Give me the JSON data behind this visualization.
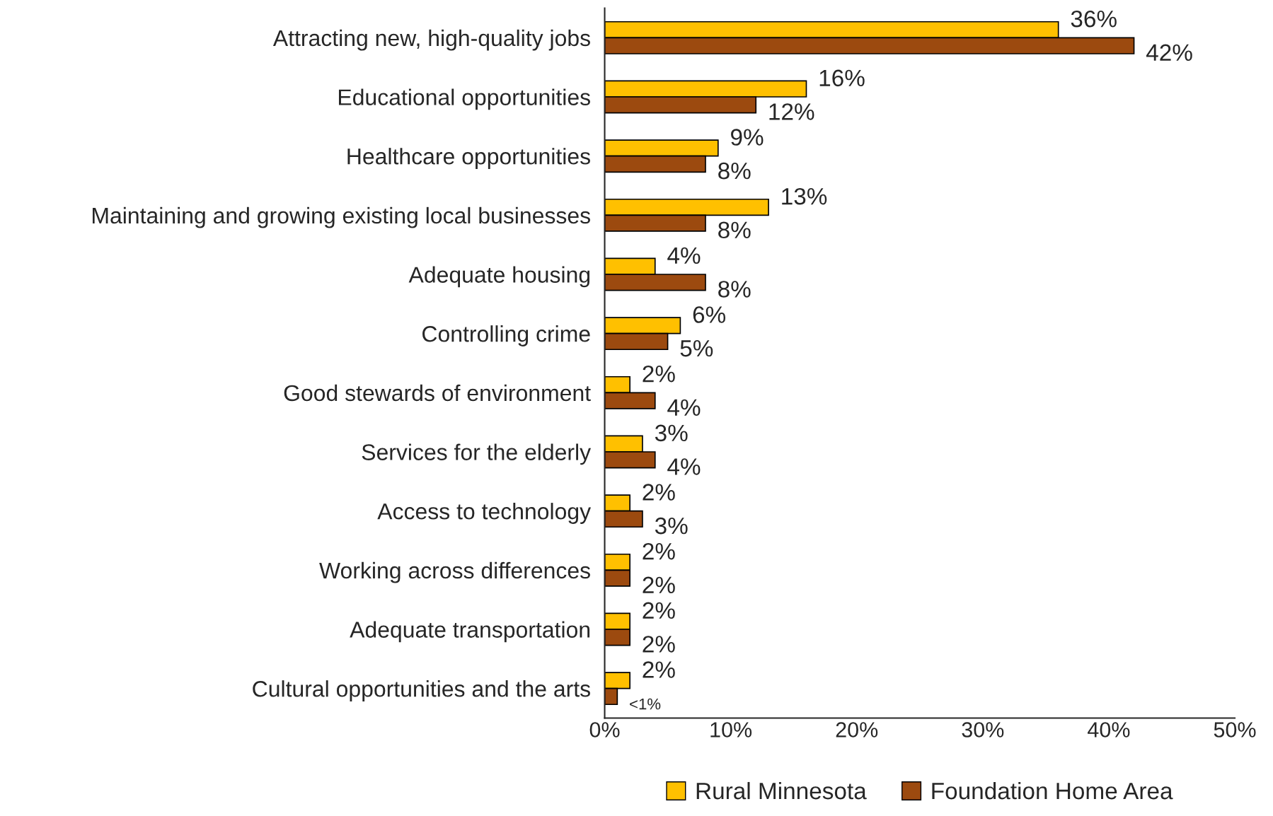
{
  "chart_data": {
    "type": "bar",
    "orientation": "horizontal",
    "categories": [
      "Attracting new, high-quality jobs",
      "Educational opportunities",
      "Healthcare opportunities",
      "Maintaining and growing existing local businesses",
      "Adequate housing",
      "Controlling crime",
      "Good stewards of environment",
      "Services for the elderly",
      "Access to technology",
      "Working across differences",
      "Adequate transportation",
      "Cultural opportunities and the arts"
    ],
    "series": [
      {
        "name": "Rural Minnesota",
        "color": "#ffc000",
        "values": [
          36,
          16,
          9,
          13,
          4,
          6,
          2,
          3,
          2,
          2,
          2,
          2
        ],
        "value_labels": [
          "36%",
          "16%",
          "9%",
          "13%",
          "4%",
          "6%",
          "2%",
          "3%",
          "2%",
          "2%",
          "2%",
          "2%"
        ]
      },
      {
        "name": "Foundation Home Area",
        "color": "#9c4a0f",
        "values": [
          42,
          12,
          8,
          8,
          8,
          5,
          4,
          4,
          3,
          2,
          2,
          1
        ],
        "value_labels": [
          "42%",
          "12%",
          "8%",
          "8%",
          "8%",
          "5%",
          "4%",
          "4%",
          "3%",
          "2%",
          "2%",
          "<1%"
        ]
      }
    ],
    "xlim": [
      0,
      50
    ],
    "xticks": [
      {
        "value": 0,
        "label": "0%"
      },
      {
        "value": 10,
        "label": "10%"
      },
      {
        "value": 20,
        "label": "20%"
      },
      {
        "value": 30,
        "label": "30%"
      },
      {
        "value": 40,
        "label": "40%"
      },
      {
        "value": 50,
        "label": "50%"
      }
    ],
    "grid": false,
    "legend": "bottom"
  }
}
